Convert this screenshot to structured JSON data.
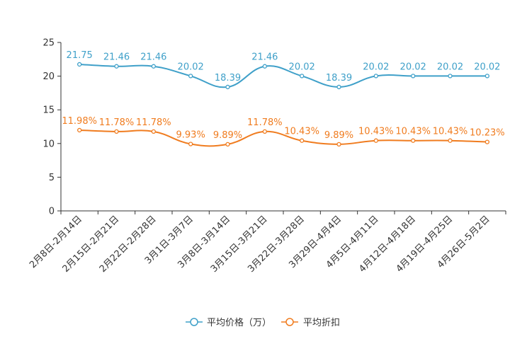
{
  "chart_data": {
    "type": "line",
    "categories": [
      "2月8日-2月14日",
      "2月15日-2月21日",
      "2月22日-2月28日",
      "3月1日-3月7日",
      "3月8日-3月14日",
      "3月15日-3月21日",
      "3月22日-3月28日",
      "3月29日-4月4日",
      "4月5日-4月11日",
      "4月12日-4月18日",
      "4月19日-4月25日",
      "4月26日-5月2日"
    ],
    "yticks": [
      0,
      5,
      10,
      15,
      20,
      25
    ],
    "ylim": [
      0,
      25
    ],
    "series": [
      {
        "name": "平均价格（万）",
        "color": "#3fa0c9",
        "values": [
          21.75,
          21.46,
          21.46,
          20.02,
          18.39,
          21.46,
          20.02,
          18.39,
          20.02,
          20.02,
          20.02,
          20.02
        ],
        "labels": [
          "21.75",
          "21.46",
          "21.46",
          "20.02",
          "18.39",
          "21.46",
          "20.02",
          "18.39",
          "20.02",
          "20.02",
          "20.02",
          "20.02"
        ]
      },
      {
        "name": "平均折扣",
        "color": "#f07c1f",
        "values": [
          11.98,
          11.78,
          11.78,
          9.93,
          9.89,
          11.78,
          10.43,
          9.89,
          10.43,
          10.43,
          10.43,
          10.23
        ],
        "labels": [
          "11.98%",
          "11.78%",
          "11.78%",
          "9.93%",
          "9.89%",
          "11.78%",
          "10.43%",
          "9.89%",
          "10.43%",
          "10.43%",
          "10.43%",
          "10.23%"
        ]
      }
    ],
    "legend_position": "bottom-center"
  }
}
